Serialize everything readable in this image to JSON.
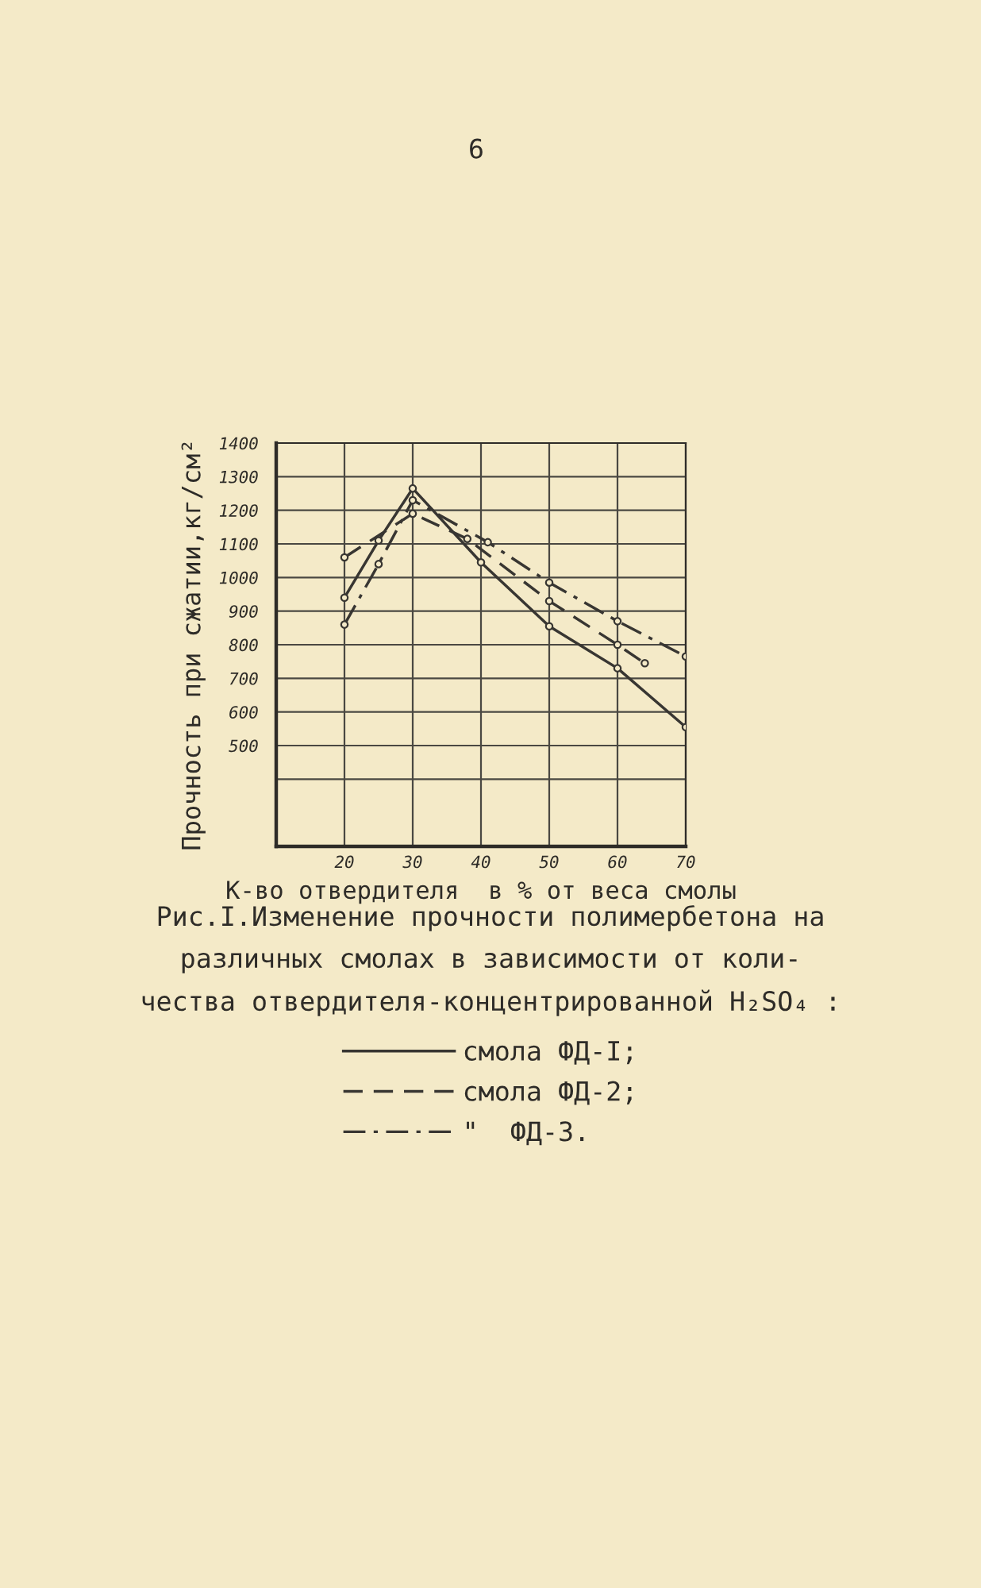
{
  "chart_data": {
    "type": "line",
    "xlabel": "К-во отвердителя  в % от веса смолы",
    "ylabel": "Прочность при сжатии,кг/см²",
    "annotations": [
      "6",
      "Рис.I.Изменение прочности полимербетона на\nразличных смолах в зависимости от коли-\nчества отвердителя-концентрированной H₂SO₄ :"
    ],
    "xlim": [
      10,
      70
    ],
    "ylim": [
      200,
      1400
    ],
    "xticks": [
      20,
      30,
      40,
      50,
      60,
      70
    ],
    "yticks": [
      {
        "value": 400,
        "label": null
      },
      500,
      600,
      700,
      800,
      900,
      1000,
      1100,
      1200,
      1300,
      1400
    ],
    "grid": true,
    "legend": "bottom",
    "marker": "circle",
    "series": [
      {
        "name": "смола ФД-I;",
        "color": "#383632",
        "line_style": "solid",
        "x": [
          20,
          25,
          30,
          40,
          50,
          60,
          70
        ],
        "values": [
          940,
          1110,
          1265,
          1045,
          855,
          730,
          555
        ]
      },
      {
        "name": "смола ФД-2;",
        "color": "#383632",
        "line_style": "dashed",
        "x": [
          20,
          30,
          38,
          50,
          60,
          64
        ],
        "values": [
          1060,
          1190,
          1115,
          930,
          800,
          745
        ]
      },
      {
        "name": "\"  ФД-3.",
        "color": "#383632",
        "line_style": "dashdot",
        "x": [
          20,
          25,
          30,
          41,
          50,
          60,
          70
        ],
        "values": [
          860,
          1040,
          1230,
          1105,
          985,
          870,
          765
        ]
      }
    ]
  }
}
